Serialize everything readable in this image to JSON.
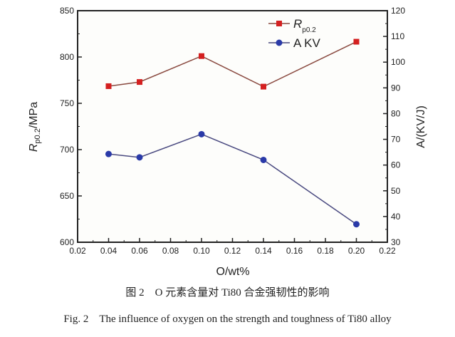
{
  "chart_data": {
    "type": "line",
    "xlabel": "O/wt%",
    "ylabel_left": {
      "main": "R",
      "sub": "p0.2",
      "unit": "/MPa"
    },
    "ylabel_right": "A/(KV/J)",
    "xlim": [
      0.02,
      0.22
    ],
    "ylim_left": [
      600,
      850
    ],
    "ylim_right": [
      30,
      120
    ],
    "x_ticks": [
      "0.02",
      "0.04",
      "0.06",
      "0.08",
      "0.10",
      "0.12",
      "0.14",
      "0.16",
      "0.18",
      "0.20",
      "0.22"
    ],
    "y_left_ticks": [
      "600",
      "650",
      "700",
      "750",
      "800",
      "850"
    ],
    "y_right_ticks": [
      "30",
      "40",
      "50",
      "60",
      "70",
      "80",
      "90",
      "100",
      "110",
      "120"
    ],
    "x": [
      0.04,
      0.06,
      0.1,
      0.14,
      0.2
    ],
    "series": [
      {
        "name": "R",
        "name_sub": "p0.2",
        "axis": "left",
        "values": [
          768.5,
          773,
          801,
          768,
          816.5
        ],
        "color": "#d42020",
        "line_color": "#8a4a40",
        "marker": "square"
      },
      {
        "name": "A KV",
        "axis": "right",
        "values": [
          64.3,
          63,
          72,
          62,
          37
        ],
        "color": "#2a3aa8",
        "line_color": "#4a4a80",
        "marker": "circle"
      }
    ],
    "legend": "top-right",
    "grid": false
  },
  "caption": {
    "cn": "图 2　O 元素含量对 Ti80 合金强韧性的影响",
    "en": "Fig. 2　The influence of oxygen on the strength and toughness of Ti80 alloy"
  }
}
